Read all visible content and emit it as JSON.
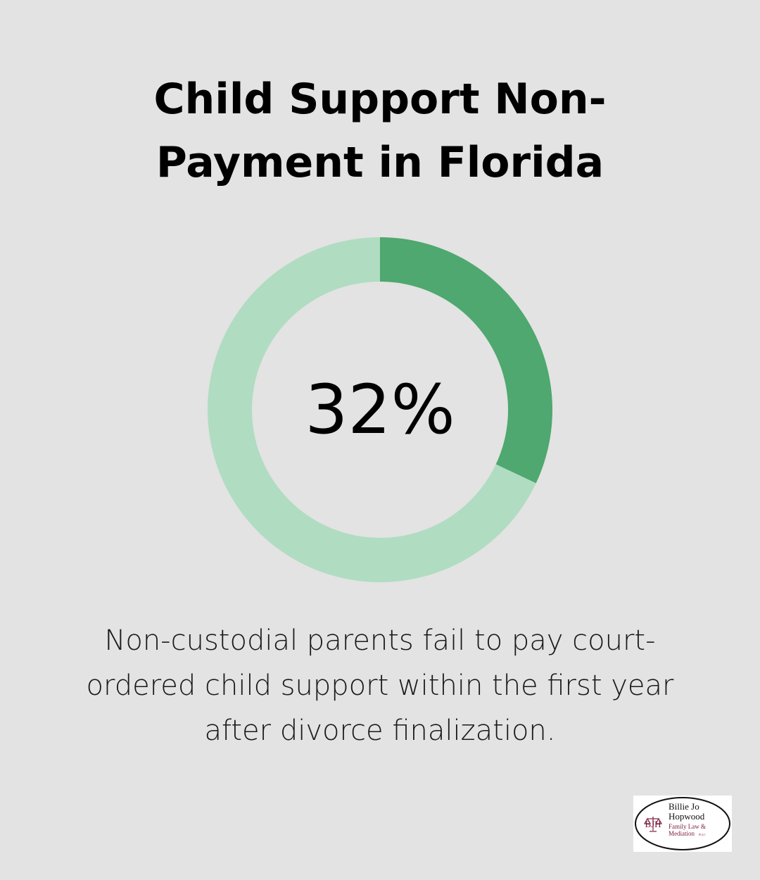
{
  "title": {
    "line1": "Child Support Non-",
    "line2": "Payment in Florida"
  },
  "chart_data": {
    "type": "pie",
    "variant": "donut",
    "value_label": "32%",
    "slices": [
      {
        "value": 32,
        "color": "#4ea86f"
      },
      {
        "value": 68,
        "color": "#b0dcc2"
      }
    ]
  },
  "description": {
    "line1": "Non-custodial parents fail to pay court-",
    "line2": "ordered child support within the first year",
    "line3": "after divorce finalization."
  },
  "logo": {
    "monogram": "BJH",
    "name_line1": "Billie Jo",
    "name_line2": "Hopwood",
    "tag_line1": "Family Law &",
    "tag_line2": "Mediation",
    "suffix": "PLLC"
  },
  "colors": {
    "background": "#e2e3e2",
    "accent": "#4ea86f",
    "track": "#b0dcc2",
    "logo_maroon": "#7a1f3d"
  }
}
